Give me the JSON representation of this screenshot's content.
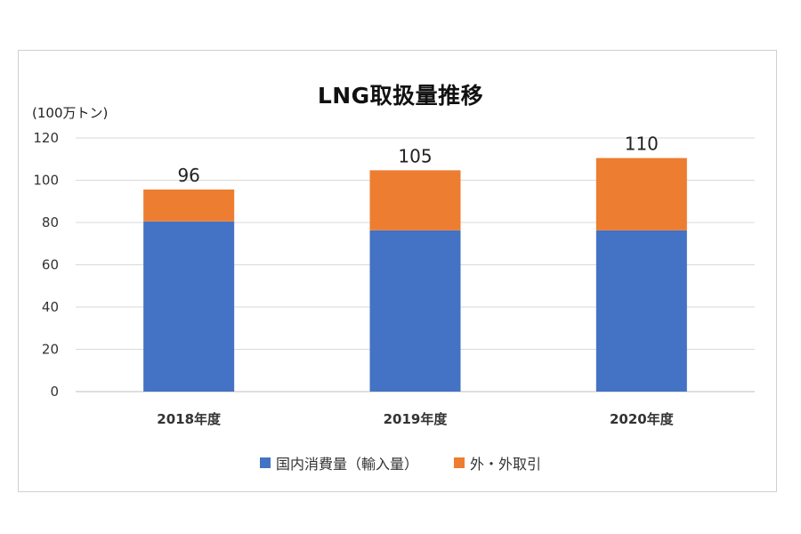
{
  "chart_data": {
    "type": "bar",
    "stacked": true,
    "title": "LNG取扱量推移",
    "unit_label": "(100万トン)",
    "categories": [
      "2018年度",
      "2019年度",
      "2020年度"
    ],
    "series": [
      {
        "name": "国内消費量（輸入量）",
        "color": "#4472C4",
        "values": [
          80.5,
          76.3,
          76.3
        ]
      },
      {
        "name": "外・外取引",
        "color": "#ED7D31",
        "values": [
          15.1,
          28.4,
          34.2
        ]
      }
    ],
    "totals": [
      "96",
      "105",
      "110"
    ],
    "ylim": [
      0,
      120
    ],
    "yticks": [
      0,
      20,
      40,
      60,
      80,
      100,
      120
    ],
    "grid": true,
    "legend_position": "bottom"
  }
}
